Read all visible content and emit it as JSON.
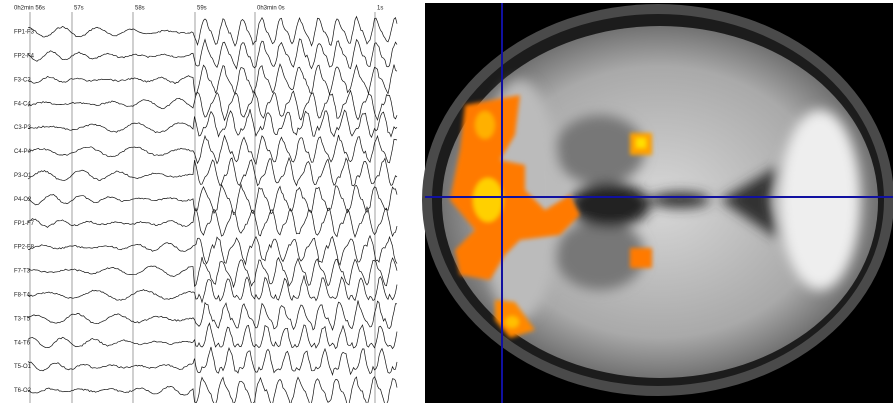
{
  "eeg": {
    "time_labels": [
      "0h2min 56s",
      "57s",
      "58s",
      "59s",
      "0h3min 0s",
      "1s"
    ],
    "channels": [
      "FP1-F3",
      "FP2-F4",
      "F3-C3",
      "F4-C4",
      "C3-P3",
      "C4-P4",
      "P3-O1",
      "P4-O2",
      "FP1-F7",
      "FP2-F8",
      "F7-T3",
      "F8-T4",
      "T3-T5",
      "T4-T6",
      "T5-O1",
      "T6-O2"
    ]
  }
}
